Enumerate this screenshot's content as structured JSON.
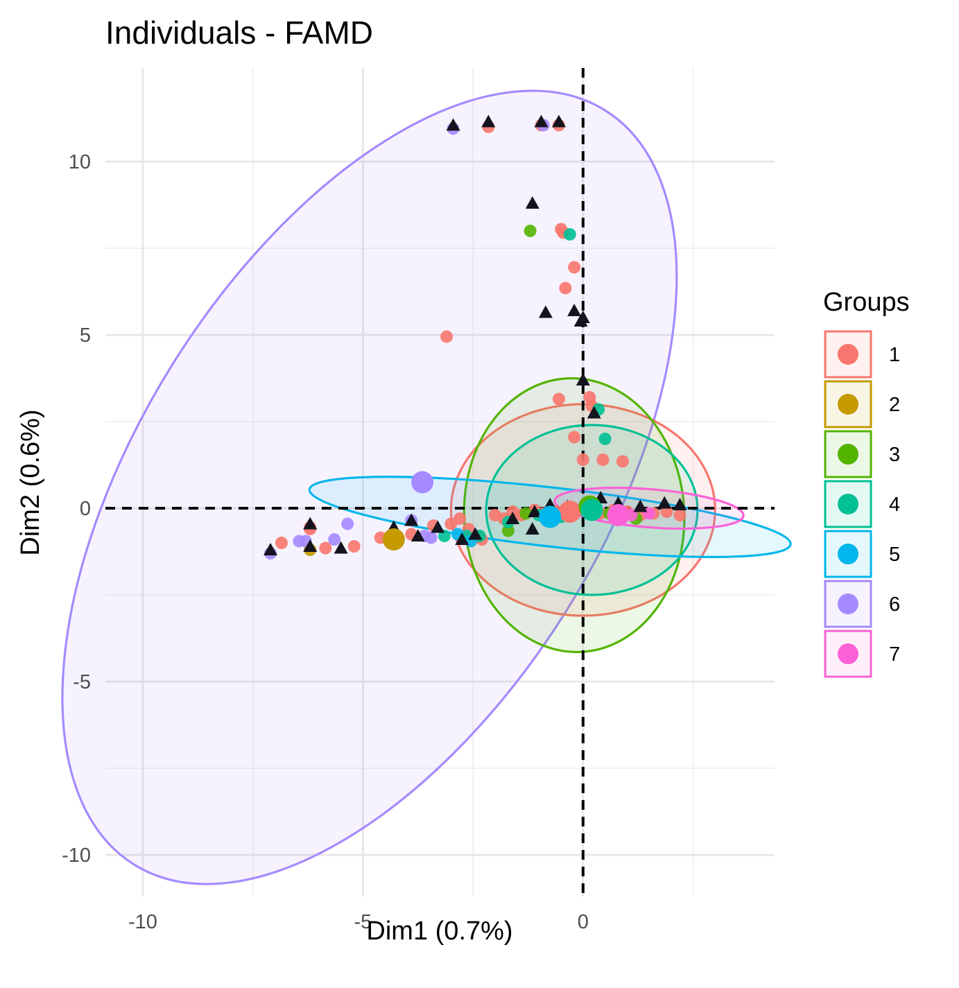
{
  "chart_data": {
    "type": "scatter",
    "title": "Individuals - FAMD",
    "xlabel": "Dim1 (0.7%)",
    "ylabel": "Dim2 (0.6%)",
    "xlim": [
      -10.85,
      4.35
    ],
    "ylim": [
      -11.2,
      12.7
    ],
    "x_ticks": [
      -10,
      -5,
      0
    ],
    "x_tick_labels": [
      "-10",
      "-5",
      "0"
    ],
    "y_ticks": [
      -10,
      -5,
      0,
      5,
      10
    ],
    "y_tick_labels": [
      "-10",
      "-5",
      "0",
      "5",
      "10"
    ],
    "grid": true,
    "reference_lines": {
      "x": 0,
      "y": 0,
      "style": "dashed"
    },
    "legend": {
      "title": "Groups",
      "placement": "right"
    },
    "series": [
      {
        "name": "1",
        "color": "#F8766D",
        "centroid": [
          -0.3,
          -0.1
        ],
        "ellipse": {
          "cx": 0.0,
          "cy": -0.05,
          "rx": 3.0,
          "ry": 3.05,
          "angle": 0
        },
        "points": [
          [
            -2.15,
            11.0
          ],
          [
            -0.95,
            11.05
          ],
          [
            -0.55,
            11.05
          ],
          [
            -0.5,
            8.05
          ],
          [
            -0.45,
            7.95
          ],
          [
            -0.2,
            6.95
          ],
          [
            -0.4,
            6.35
          ],
          [
            -3.1,
            4.95
          ],
          [
            -0.55,
            3.15
          ],
          [
            0.15,
            3.2
          ],
          [
            0.2,
            2.95
          ],
          [
            -0.2,
            2.05
          ],
          [
            0.0,
            1.4
          ],
          [
            0.45,
            1.4
          ],
          [
            0.9,
            1.35
          ],
          [
            -6.2,
            -0.55
          ],
          [
            -6.2,
            -0.6
          ],
          [
            -6.85,
            -1.0
          ],
          [
            -5.2,
            -1.1
          ],
          [
            -5.85,
            -1.15
          ],
          [
            -4.6,
            -0.85
          ],
          [
            -3.9,
            -0.75
          ],
          [
            -3.4,
            -0.5
          ],
          [
            -3.0,
            -0.45
          ],
          [
            -2.8,
            -0.3
          ],
          [
            -2.6,
            -0.6
          ],
          [
            -2.4,
            -0.8
          ],
          [
            -2.3,
            -0.9
          ],
          [
            -2.0,
            -0.2
          ],
          [
            -1.8,
            -0.3
          ],
          [
            -1.6,
            -0.1
          ],
          [
            -1.4,
            -0.2
          ],
          [
            -1.1,
            -0.05
          ],
          [
            -0.9,
            -0.15
          ],
          [
            -0.6,
            -0.1
          ],
          [
            -0.3,
            -0.05
          ],
          [
            0.1,
            -0.1
          ],
          [
            0.4,
            -0.15
          ],
          [
            0.7,
            -0.05
          ],
          [
            1.0,
            -0.1
          ],
          [
            1.3,
            -0.2
          ],
          [
            1.6,
            -0.15
          ],
          [
            1.9,
            -0.1
          ],
          [
            2.2,
            -0.2
          ]
        ]
      },
      {
        "name": "2",
        "color": "#C49A00",
        "centroid": [
          -4.3,
          -0.9
        ],
        "ellipse": null,
        "points": [
          [
            -6.2,
            -1.2
          ]
        ]
      },
      {
        "name": "3",
        "color": "#53B400",
        "centroid": [
          0.15,
          0.05
        ],
        "ellipse": {
          "cx": -0.2,
          "cy": -0.2,
          "rx": 2.5,
          "ry": 3.95,
          "angle": 3
        },
        "points": [
          [
            -1.2,
            8.0
          ],
          [
            -1.7,
            -0.65
          ],
          [
            -1.3,
            -0.15
          ],
          [
            -0.2,
            -0.1
          ],
          [
            0.6,
            -0.15
          ],
          [
            1.2,
            -0.3
          ]
        ]
      },
      {
        "name": "4",
        "color": "#00C094",
        "centroid": [
          0.2,
          -0.05
        ],
        "ellipse": {
          "cx": 0.2,
          "cy": -0.05,
          "rx": 2.4,
          "ry": 2.45,
          "angle": 0
        },
        "points": [
          [
            -0.3,
            7.9
          ],
          [
            0.35,
            2.85
          ],
          [
            0.5,
            2.0
          ],
          [
            -3.15,
            -0.8
          ],
          [
            -2.65,
            -0.8
          ],
          [
            -2.35,
            -0.8
          ],
          [
            -1.7,
            -0.4
          ],
          [
            -1.0,
            -0.2
          ],
          [
            -0.5,
            -0.25
          ],
          [
            -0.1,
            -0.05
          ],
          [
            0.3,
            -0.1
          ]
        ]
      },
      {
        "name": "5",
        "color": "#00B6EB",
        "centroid": [
          -0.75,
          -0.25
        ],
        "ellipse": {
          "cx": -0.75,
          "cy": -0.25,
          "rx": 5.5,
          "ry": 0.85,
          "angle": -6.5
        },
        "points": [
          [
            -2.55,
            -0.95
          ],
          [
            -2.85,
            -0.75
          ]
        ]
      },
      {
        "name": "6",
        "color": "#A58AFF",
        "centroid": [
          -3.65,
          0.75
        ],
        "ellipse": {
          "cx": -4.85,
          "cy": 0.6,
          "rx": 10.1,
          "ry": 6.7,
          "angle": 58
        },
        "points": [
          [
            -2.95,
            10.95
          ],
          [
            -0.9,
            11.05
          ],
          [
            -6.45,
            -0.95
          ],
          [
            -6.3,
            -0.95
          ],
          [
            -7.1,
            -1.3
          ],
          [
            -5.65,
            -0.9
          ],
          [
            -5.35,
            -0.45
          ],
          [
            -3.9,
            -0.35
          ],
          [
            -3.6,
            -0.8
          ],
          [
            -3.45,
            -0.85
          ]
        ]
      },
      {
        "name": "7",
        "color": "#FB61D7",
        "centroid": [
          0.8,
          -0.2
        ],
        "ellipse": {
          "cx": 1.5,
          "cy": 0.0,
          "rx": 2.15,
          "ry": 0.55,
          "angle": -4.5
        },
        "points": [
          [
            1.1,
            -0.2
          ],
          [
            1.5,
            -0.15
          ]
        ]
      }
    ],
    "supplementary_points": {
      "shape": "triangle",
      "color": "#14141e",
      "points": [
        [
          -1.15,
          8.8
        ],
        [
          -0.85,
          5.65
        ],
        [
          -0.2,
          5.7
        ],
        [
          0.0,
          5.5
        ],
        [
          -0.05,
          5.4
        ],
        [
          0.0,
          3.7
        ],
        [
          0.25,
          2.75
        ],
        [
          -2.15,
          11.15
        ],
        [
          -0.95,
          11.15
        ],
        [
          -0.55,
          11.15
        ],
        [
          -2.95,
          11.05
        ],
        [
          -6.2,
          -0.45
        ],
        [
          -6.2,
          -1.1
        ],
        [
          -7.1,
          -1.2
        ],
        [
          -5.5,
          -1.15
        ],
        [
          -4.3,
          -0.55
        ],
        [
          -3.9,
          -0.35
        ],
        [
          -3.75,
          -0.8
        ],
        [
          -3.3,
          -0.55
        ],
        [
          -2.75,
          -0.9
        ],
        [
          -2.45,
          -0.75
        ],
        [
          -1.6,
          -0.3
        ],
        [
          -1.15,
          -0.6
        ],
        [
          -1.1,
          -0.1
        ],
        [
          -0.75,
          0.1
        ],
        [
          -0.35,
          0.05
        ],
        [
          0.4,
          0.3
        ],
        [
          0.8,
          0.15
        ],
        [
          1.3,
          0.05
        ],
        [
          1.85,
          0.15
        ],
        [
          2.2,
          0.1
        ]
      ]
    }
  }
}
